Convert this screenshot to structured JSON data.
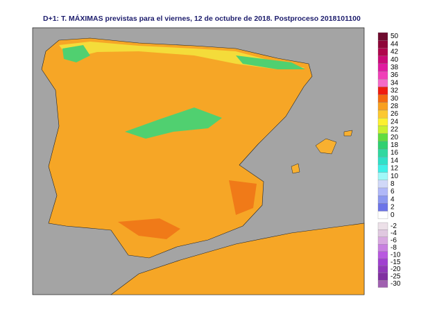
{
  "header": {
    "title": "D+1: T. MÁXIMAS previstas para el viernes, 12 de octubre de 2018. Postproceso 2018101100"
  },
  "legend": {
    "upper": [
      {
        "label": "50",
        "color": "#6e0b2e"
      },
      {
        "label": "44",
        "color": "#8e0638"
      },
      {
        "label": "42",
        "color": "#b0064c"
      },
      {
        "label": "40",
        "color": "#cc0a78"
      },
      {
        "label": "38",
        "color": "#e01aa0"
      },
      {
        "label": "36",
        "color": "#f040b8"
      },
      {
        "label": "34",
        "color": "#f46ac8"
      },
      {
        "label": "32",
        "color": "#f01c10"
      },
      {
        "label": "30",
        "color": "#f46a10"
      },
      {
        "label": "28",
        "color": "#f8a020"
      },
      {
        "label": "26",
        "color": "#fcc830"
      },
      {
        "label": "24",
        "color": "#fcf030"
      },
      {
        "label": "22",
        "color": "#c8f030"
      },
      {
        "label": "20",
        "color": "#60dc40"
      },
      {
        "label": "18",
        "color": "#30d070"
      },
      {
        "label": "16",
        "color": "#30d8a0"
      },
      {
        "label": "14",
        "color": "#30e0c8"
      },
      {
        "label": "12",
        "color": "#40f0e8"
      },
      {
        "label": "10",
        "color": "#a0f8f8"
      },
      {
        "label": "8",
        "color": "#d0d8f8"
      },
      {
        "label": "6",
        "color": "#b0b8f8"
      },
      {
        "label": "4",
        "color": "#8c98f0"
      },
      {
        "label": "2",
        "color": "#6c74e8"
      },
      {
        "label": "0",
        "color": "#ffffff"
      }
    ],
    "lower": [
      {
        "label": "-2",
        "color": "#ece0e8"
      },
      {
        "label": "-4",
        "color": "#e0c8e0"
      },
      {
        "label": "-6",
        "color": "#d8a8e0"
      },
      {
        "label": "-8",
        "color": "#c880e0"
      },
      {
        "label": "-10",
        "color": "#b858e0"
      },
      {
        "label": "-15",
        "color": "#a040d0"
      },
      {
        "label": "-20",
        "color": "#9038b8"
      },
      {
        "label": "-25",
        "color": "#8030a0"
      },
      {
        "label": "-30",
        "color": "#a060b0"
      }
    ]
  }
}
